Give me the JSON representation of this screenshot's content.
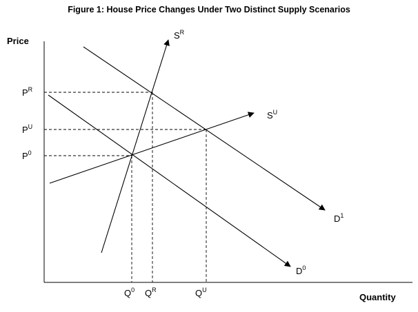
{
  "title": "Figure 1: House Price Changes Under Two Distinct Supply Scenarios",
  "axes": {
    "y_label": "Price",
    "x_label": "Quantity"
  },
  "curves": {
    "SR": {
      "base": "S",
      "sup": "R"
    },
    "SU": {
      "base": "S",
      "sup": "U"
    },
    "D1": {
      "base": "D",
      "sup": "1"
    },
    "D0": {
      "base": "D",
      "sup": "0"
    }
  },
  "price_levels": {
    "PR": {
      "base": "P",
      "sup": "R"
    },
    "PU": {
      "base": "P",
      "sup": "U"
    },
    "P0": {
      "base": "P",
      "sup": "0"
    }
  },
  "quantity_levels": {
    "Q0": {
      "base": "Q",
      "sup": "0"
    },
    "QR": {
      "base": "Q",
      "sup": "R"
    },
    "QU": {
      "base": "Q",
      "sup": "U"
    }
  },
  "colors": {
    "line": "#000000",
    "background": "#ffffff"
  }
}
